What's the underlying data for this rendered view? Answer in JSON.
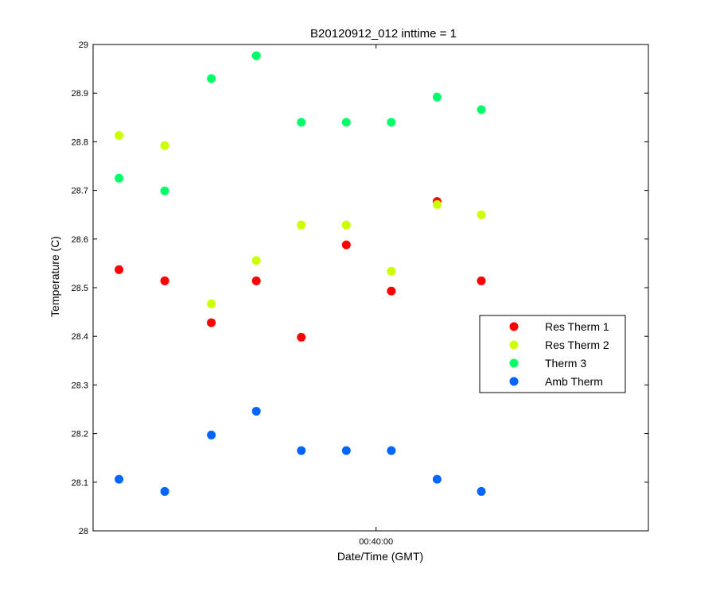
{
  "chart_data": {
    "type": "scatter",
    "title": "B20120912_012 inttime = 1",
    "xlabel": "Date/Time (GMT)",
    "ylabel": "Temperature (C)",
    "ylim": [
      28,
      29
    ],
    "yticks": [
      "28",
      "28.1",
      "28.2",
      "28.3",
      "28.4",
      "28.5",
      "28.6",
      "28.7",
      "28.8",
      "28.9",
      "29"
    ],
    "xlim": [
      "00:33:49",
      "00:45:57"
    ],
    "xticks": [
      {
        "label": "00:40:00",
        "value": "00:40:00"
      }
    ],
    "x": [
      "00:34:23",
      "00:35:23",
      "00:36:24",
      "00:37:23",
      "00:38:22",
      "00:39:21",
      "00:40:20",
      "00:41:20",
      "00:42:18"
    ],
    "grid": false,
    "legend_position": "right",
    "series": [
      {
        "name": "Res Therm 1",
        "color": "#ff0000",
        "values": [
          28.537,
          28.514,
          28.428,
          28.514,
          28.398,
          28.588,
          28.493,
          28.677,
          28.514
        ]
      },
      {
        "name": "Res Therm 2",
        "color": "#ccff00",
        "values": [
          28.813,
          28.792,
          28.467,
          28.556,
          28.629,
          28.629,
          28.534,
          28.671,
          28.65
        ]
      },
      {
        "name": "Therm 3",
        "color": "#00ff66",
        "values": [
          28.725,
          28.699,
          28.93,
          28.977,
          28.84,
          28.84,
          28.84,
          28.892,
          28.866
        ]
      },
      {
        "name": "Amb Therm",
        "color": "#0066ff",
        "values": [
          28.106,
          28.081,
          28.197,
          28.246,
          28.165,
          28.165,
          28.165,
          28.106,
          28.081
        ]
      }
    ]
  }
}
